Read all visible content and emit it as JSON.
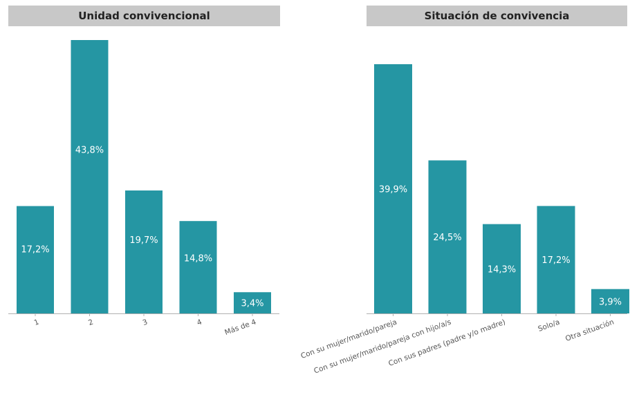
{
  "colors": {
    "bar": "#2596a3",
    "header_bg": "#c8c8c8",
    "axis": "#b0b0b0",
    "label_inside": "#ffffff",
    "tick_label": "#555555"
  },
  "chart_data": [
    {
      "type": "bar",
      "title": "Unidad convivencional",
      "categories": [
        "1",
        "2",
        "3",
        "4",
        "Más de 4"
      ],
      "values": [
        17.2,
        43.8,
        19.7,
        14.8,
        3.4
      ],
      "value_labels": [
        "17,2%",
        "43,8%",
        "19,7%",
        "14,8%",
        "3,4%"
      ],
      "xlabel": "",
      "ylabel": "",
      "grid": false
    },
    {
      "type": "bar",
      "title": "Situación de convivencia",
      "categories": [
        "Con su mujer/marido/pareja",
        "Con su mujer/marido/pareja con hijo/a/s",
        "Con sus padres (padre y/o madre)",
        "Solo/a",
        "Otra situación"
      ],
      "values": [
        39.9,
        24.5,
        14.3,
        17.2,
        3.9
      ],
      "value_labels": [
        "39,9%",
        "24,5%",
        "14,3%",
        "17,2%",
        "3,9%"
      ],
      "xlabel": "",
      "ylabel": "",
      "grid": false
    }
  ]
}
